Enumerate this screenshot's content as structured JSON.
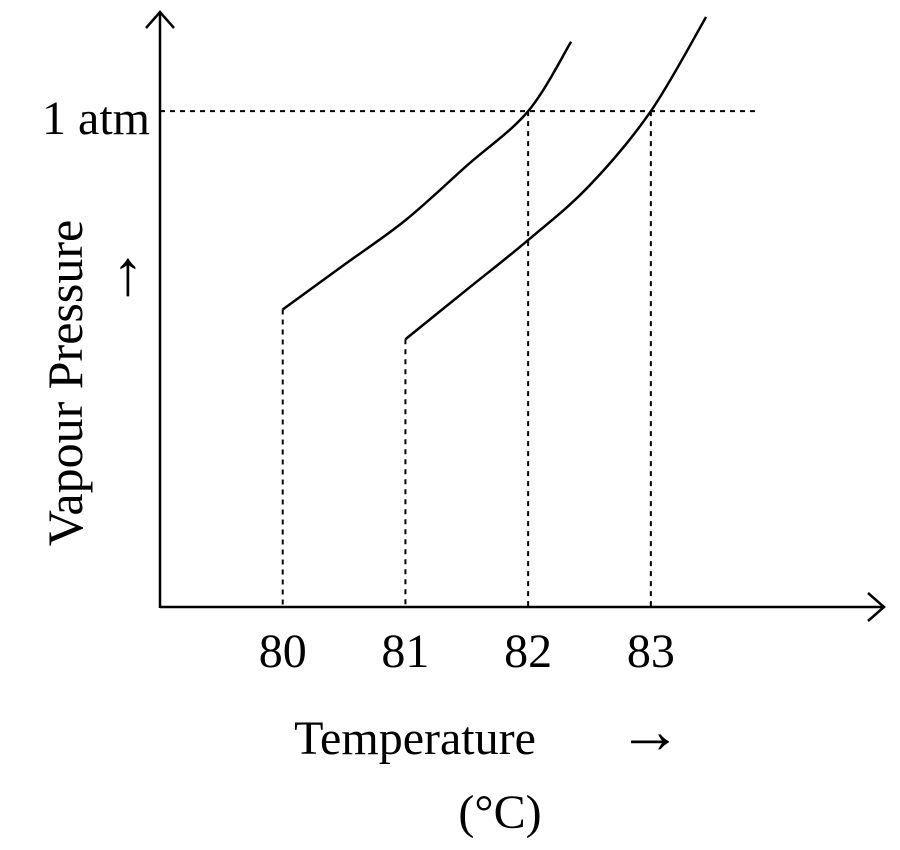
{
  "chart_data": {
    "type": "line",
    "title": "",
    "xlabel": "Temperature",
    "xunit": "(°C)",
    "ylabel": "Vapour Pressure",
    "x_ticks": [
      "80",
      "81",
      "82",
      "83"
    ],
    "y_reference_label": "1 atm",
    "y_reference_value": 1,
    "xlim": [
      79,
      84.9
    ],
    "ylim": [
      0,
      1.2
    ],
    "grid": false,
    "series": [
      {
        "x": [
          80.0,
          80.5,
          81.0,
          81.5,
          82.0,
          82.35
        ],
        "y": [
          0.6,
          0.69,
          0.78,
          0.89,
          1.0,
          1.14
        ]
      },
      {
        "x": [
          81.0,
          81.5,
          82.0,
          82.5,
          83.0,
          83.45
        ],
        "y": [
          0.54,
          0.64,
          0.74,
          0.85,
          1.0,
          1.19
        ]
      }
    ],
    "dashed_drops": [
      80,
      81,
      82,
      83
    ],
    "arrows": [
      "→",
      "↑"
    ]
  }
}
